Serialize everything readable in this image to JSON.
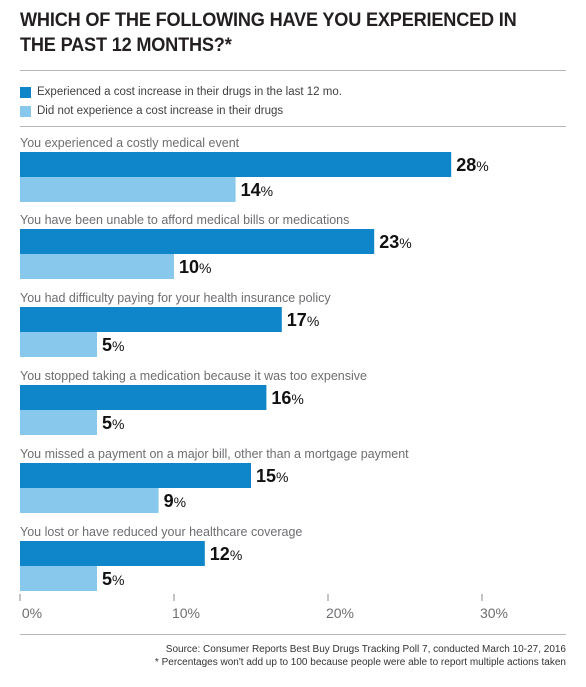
{
  "title": "WHICH OF THE FOLLOWING HAVE YOU EXPERIENCED IN THE PAST 12 MONTHS?*",
  "legend": {
    "items": [
      {
        "label": "Experienced a cost increase in their drugs in the last 12 mo.",
        "color": "#0e86c9"
      },
      {
        "label": "Did not experience a cost increase in their drugs",
        "color": "#87c8ec"
      }
    ]
  },
  "chart_data": {
    "type": "bar",
    "orientation": "horizontal",
    "title": "WHICH OF THE FOLLOWING HAVE YOU EXPERIENCED IN THE PAST 12 MONTHS?*",
    "categories": [
      "You experienced a costly medical event",
      "You have been unable to afford medical bills or medications",
      "You had difficulty paying for your health insurance policy",
      "You stopped taking a medication because it was too expensive",
      "You missed a payment on a major bill, other than a mortgage payment",
      "You lost or have reduced your healthcare coverage"
    ],
    "series": [
      {
        "name": "Experienced a cost increase in their drugs in the last 12 mo.",
        "color": "#0e86c9",
        "values": [
          28,
          23,
          17,
          16,
          15,
          12
        ]
      },
      {
        "name": "Did not experience a cost increase in their drugs",
        "color": "#87c8ec",
        "values": [
          14,
          10,
          5,
          5,
          9,
          5
        ]
      }
    ],
    "value_suffix": "%",
    "xlim": [
      0,
      30
    ],
    "xticks": [
      0,
      10,
      20,
      30
    ],
    "xtick_labels": [
      "0%",
      "10%",
      "20%",
      "30%"
    ],
    "grid": false,
    "legend_position": "top-left"
  },
  "footnotes": {
    "source": "Source: Consumer Reports Best Buy Drugs Tracking Poll 7, conducted March 10-27, 2016",
    "note": "* Percentages won't add up to 100 because people were able to report multiple actions taken"
  }
}
